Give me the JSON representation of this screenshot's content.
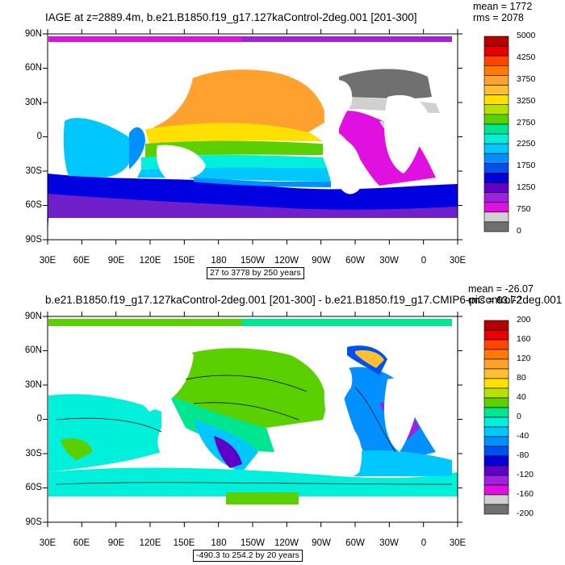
{
  "top_panel": {
    "title": "IAGE at z=2889.4m, b.e21.B1850.f19_g17.127kaControl-2deg.001 [201-300]",
    "mean": "mean = 1772",
    "rms": "rms = 2078",
    "range": "27 to 3778 by 250 years",
    "colorbar_labels": [
      "5000",
      "4250",
      "3750",
      "3250",
      "2750",
      "2250",
      "1750",
      "1250",
      "750",
      "0"
    ],
    "colorbar_colors": [
      "#b40000",
      "#e80000",
      "#ff4400",
      "#ff7a00",
      "#ffa12e",
      "#ffbf33",
      "#ffe000",
      "#b8e000",
      "#5ad000",
      "#00e690",
      "#00f0dc",
      "#00c8ff",
      "#0090ff",
      "#0050f0",
      "#0000d8",
      "#6000c8",
      "#a020e0",
      "#e010e0",
      "#d0d0d0",
      "#707070"
    ]
  },
  "bottom_panel": {
    "title": "b.e21.B1850.f19_g17.127kaControl-2deg.001 [201-300] - b.e21.B1850.f19_g17.CMIP6-piControl-2deg.001",
    "mean": "mean = -26.07",
    "rms": "rms = 63.72",
    "range": "-490.3 to 254.2 by 20 years",
    "colorbar_labels": [
      "200",
      "160",
      "120",
      "80",
      "40",
      "0",
      "-40",
      "-80",
      "-120",
      "-160",
      "-200"
    ],
    "colorbar_colors": [
      "#b40000",
      "#e80000",
      "#ff4400",
      "#ff7a00",
      "#ffa12e",
      "#ffbf33",
      "#ffe000",
      "#b8e000",
      "#5ad000",
      "#00e690",
      "#00f0dc",
      "#00c8ff",
      "#0090ff",
      "#0050f0",
      "#0000d8",
      "#6000c8",
      "#a020e0",
      "#e010e0",
      "#d0d0d0",
      "#707070"
    ]
  },
  "axes": {
    "lat_labels": [
      "90N",
      "60N",
      "30N",
      "0",
      "30S",
      "60S",
      "90S"
    ],
    "lon_labels": [
      "30E",
      "60E",
      "90E",
      "120E",
      "150E",
      "180",
      "150W",
      "120W",
      "90W",
      "60W",
      "30W",
      "0",
      "30E"
    ]
  }
}
